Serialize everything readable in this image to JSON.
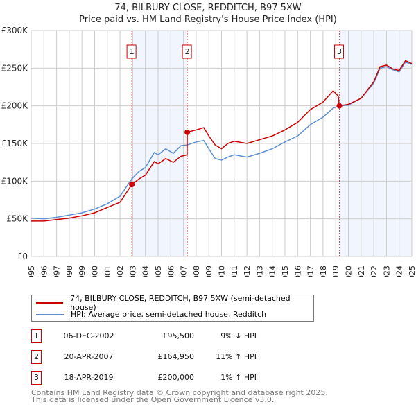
{
  "chart_data": {
    "type": "line",
    "title": "74, BILBURY CLOSE, REDDITCH, B97 5XW",
    "subtitle": "Price paid vs. HM Land Registry's House Price Index (HPI)",
    "xlim": [
      1995,
      2025
    ],
    "ylim": [
      0,
      300000
    ],
    "yticks": [
      {
        "v": 0,
        "l": "£0"
      },
      {
        "v": 50000,
        "l": "£50K"
      },
      {
        "v": 100000,
        "l": "£100K"
      },
      {
        "v": 150000,
        "l": "£150K"
      },
      {
        "v": 200000,
        "l": "£200K"
      },
      {
        "v": 250000,
        "l": "£250K"
      },
      {
        "v": 300000,
        "l": "£300K"
      }
    ],
    "xticks": [
      1995,
      1996,
      1997,
      1998,
      1999,
      2000,
      2001,
      2002,
      2003,
      2004,
      2005,
      2006,
      2007,
      2008,
      2009,
      2010,
      2011,
      2012,
      2013,
      2014,
      2015,
      2016,
      2017,
      2018,
      2019,
      2020,
      2021,
      2022,
      2023,
      2024,
      2025
    ],
    "grid": true,
    "shaded": [
      [
        2002.93,
        2007.3
      ],
      [
        2019.29,
        2025
      ]
    ],
    "series": [
      {
        "name": "74, BILBURY CLOSE, REDDITCH, B97 5XW (semi-detached house)",
        "color": "#cc0000",
        "x": [
          1995,
          1996,
          1997,
          1998,
          1999,
          2000,
          2001,
          2002,
          2002.93,
          2003.5,
          2004,
          2004.7,
          2005,
          2005.6,
          2006.2,
          2006.8,
          2007.29,
          2007.3,
          2008,
          2008.6,
          2009,
          2009.5,
          2010,
          2010.5,
          2011,
          2012,
          2013,
          2014,
          2015,
          2016,
          2017,
          2018,
          2018.8,
          2019.2,
          2019.29,
          2020,
          2021,
          2022,
          2022.5,
          2023,
          2023.5,
          2024,
          2024.5,
          2025
        ],
        "y": [
          47000,
          47000,
          49000,
          51000,
          54000,
          58000,
          65000,
          72000,
          95500,
          103000,
          108000,
          126000,
          123000,
          130000,
          125000,
          133000,
          135000,
          164950,
          168000,
          171000,
          160000,
          148000,
          143000,
          150000,
          153000,
          150000,
          155000,
          160000,
          168000,
          178000,
          195000,
          205000,
          220000,
          213000,
          200000,
          202000,
          210000,
          232000,
          252000,
          254000,
          249000,
          247000,
          260000,
          256000
        ]
      },
      {
        "name": "HPI: Average price, semi-detached house, Redditch",
        "color": "#5b8fd0",
        "x": [
          1995,
          1996,
          1997,
          1998,
          1999,
          2000,
          2001,
          2002,
          2002.93,
          2003.5,
          2004,
          2004.7,
          2005,
          2005.6,
          2006.2,
          2006.8,
          2007.3,
          2008,
          2008.6,
          2009,
          2009.5,
          2010,
          2010.5,
          2011,
          2012,
          2013,
          2014,
          2015,
          2016,
          2017,
          2018,
          2018.8,
          2019.3,
          2020,
          2021,
          2022,
          2022.5,
          2023,
          2023.5,
          2024,
          2024.5,
          2025
        ],
        "y": [
          51000,
          50000,
          52000,
          55000,
          58000,
          63000,
          70000,
          80000,
          103000,
          113000,
          118000,
          138000,
          135000,
          143000,
          137000,
          147000,
          148000,
          152000,
          154000,
          143000,
          130000,
          128000,
          132000,
          135000,
          132000,
          137000,
          143000,
          152000,
          160000,
          175000,
          185000,
          197000,
          200000,
          201000,
          210000,
          230000,
          250000,
          252000,
          248000,
          245000,
          258000,
          255000
        ]
      }
    ],
    "sales": [
      {
        "n": "1",
        "x": 2002.93,
        "y": 95500
      },
      {
        "n": "2",
        "x": 2007.3,
        "y": 164950
      },
      {
        "n": "3",
        "x": 2019.29,
        "y": 200000
      }
    ]
  },
  "table": [
    {
      "n": "1",
      "date": "06-DEC-2002",
      "price": "£95,500",
      "hpi": "9% ↓ HPI"
    },
    {
      "n": "2",
      "date": "20-APR-2007",
      "price": "£164,950",
      "hpi": "11% ↑ HPI"
    },
    {
      "n": "3",
      "date": "18-APR-2019",
      "price": "£200,000",
      "hpi": "1% ↑ HPI"
    }
  ],
  "footer": [
    "Contains HM Land Registry data © Crown copyright and database right 2025.",
    "This data is licensed under the Open Government Licence v3.0."
  ]
}
